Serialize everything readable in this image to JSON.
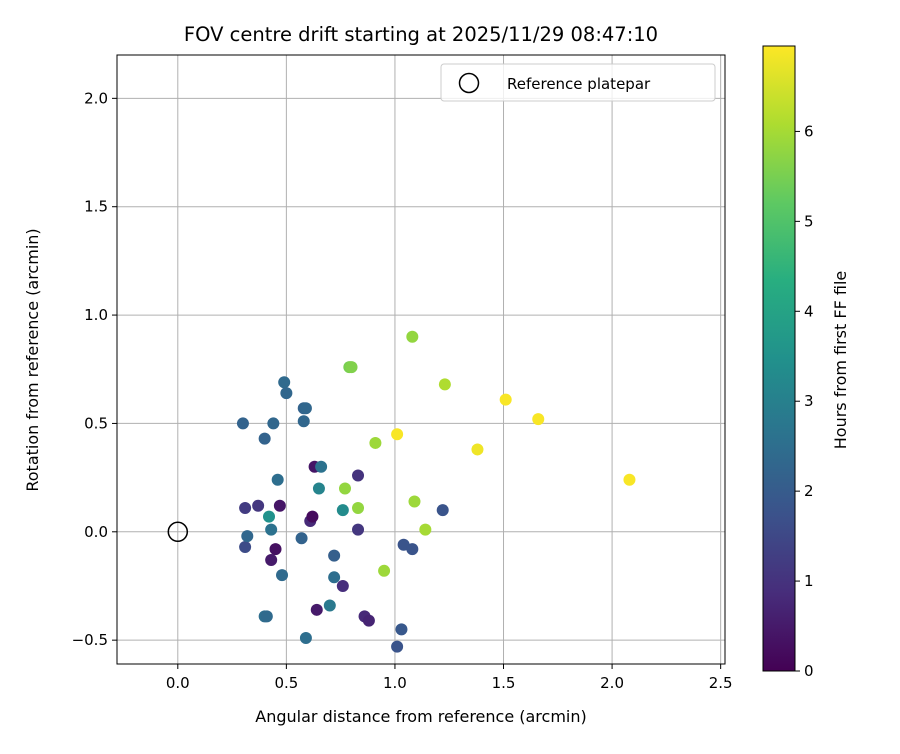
{
  "chart_data": {
    "type": "scatter",
    "title": "FOV centre drift starting at 2025/11/29 08:47:10",
    "xlabel": "Angular distance from reference (arcmin)",
    "ylabel": "Rotation from reference (arcmin)",
    "xlim": [
      -0.28,
      2.52
    ],
    "ylim": [
      -0.61,
      2.2
    ],
    "xticks": [
      0.0,
      0.5,
      1.0,
      1.5,
      2.0,
      2.5
    ],
    "xtick_labels": [
      "0.0",
      "0.5",
      "1.0",
      "1.5",
      "2.0",
      "2.5"
    ],
    "yticks": [
      -0.5,
      0.0,
      0.5,
      1.0,
      1.5,
      2.0
    ],
    "ytick_labels": [
      "−0.5",
      "0.0",
      "0.5",
      "1.0",
      "1.5",
      "2.0"
    ],
    "grid": true,
    "legend": {
      "position": "top-right",
      "entries": [
        "Reference platepar"
      ]
    },
    "reference_point": {
      "x": 0.0,
      "y": 0.0,
      "label": "Reference platepar"
    },
    "colorbar": {
      "label": "Hours from first FF file",
      "min": 0,
      "max": 6.95,
      "ticks": [
        0,
        1,
        2,
        3,
        4,
        5,
        6
      ],
      "tick_labels": [
        "0",
        "1",
        "2",
        "3",
        "4",
        "5",
        "6"
      ],
      "colormap": "viridis"
    },
    "points": [
      {
        "x": 0.3,
        "y": 0.5,
        "c": 2.2
      },
      {
        "x": 0.31,
        "y": 0.11,
        "c": 1.2
      },
      {
        "x": 0.31,
        "y": -0.07,
        "c": 1.6
      },
      {
        "x": 0.32,
        "y": -0.02,
        "c": 2.3
      },
      {
        "x": 0.37,
        "y": 0.12,
        "c": 1.1
      },
      {
        "x": 0.4,
        "y": 0.43,
        "c": 2.2
      },
      {
        "x": 0.4,
        "y": -0.39,
        "c": 2.5
      },
      {
        "x": 0.41,
        "y": -0.39,
        "c": 2.4
      },
      {
        "x": 0.42,
        "y": 0.07,
        "c": 3.5
      },
      {
        "x": 0.43,
        "y": 0.01,
        "c": 2.6
      },
      {
        "x": 0.43,
        "y": -0.13,
        "c": 0.5
      },
      {
        "x": 0.44,
        "y": 0.5,
        "c": 2.3
      },
      {
        "x": 0.45,
        "y": -0.08,
        "c": 0.3
      },
      {
        "x": 0.46,
        "y": 0.24,
        "c": 2.5
      },
      {
        "x": 0.47,
        "y": 0.12,
        "c": 0.4
      },
      {
        "x": 0.48,
        "y": -0.2,
        "c": 2.4
      },
      {
        "x": 0.49,
        "y": 0.69,
        "c": 2.4
      },
      {
        "x": 0.5,
        "y": 0.64,
        "c": 2.3
      },
      {
        "x": 0.57,
        "y": -0.03,
        "c": 2.2
      },
      {
        "x": 0.58,
        "y": 0.57,
        "c": 2.2
      },
      {
        "x": 0.59,
        "y": 0.57,
        "c": 2.3
      },
      {
        "x": 0.58,
        "y": 0.51,
        "c": 2.3
      },
      {
        "x": 0.59,
        "y": -0.49,
        "c": 2.5
      },
      {
        "x": 0.61,
        "y": 0.05,
        "c": 0.8
      },
      {
        "x": 0.62,
        "y": 0.07,
        "c": 0.2
      },
      {
        "x": 0.63,
        "y": 0.3,
        "c": 0.4
      },
      {
        "x": 0.64,
        "y": -0.36,
        "c": 0.5
      },
      {
        "x": 0.65,
        "y": 0.2,
        "c": 3.1
      },
      {
        "x": 0.66,
        "y": 0.3,
        "c": 2.6
      },
      {
        "x": 0.7,
        "y": -0.34,
        "c": 2.8
      },
      {
        "x": 0.72,
        "y": -0.11,
        "c": 2.1
      },
      {
        "x": 0.72,
        "y": -0.21,
        "c": 2.5
      },
      {
        "x": 0.76,
        "y": -0.25,
        "c": 0.9
      },
      {
        "x": 0.76,
        "y": 0.1,
        "c": 3.3
      },
      {
        "x": 0.77,
        "y": 0.2,
        "c": 5.8
      },
      {
        "x": 0.79,
        "y": 0.76,
        "c": 5.5
      },
      {
        "x": 0.8,
        "y": 0.76,
        "c": 5.6
      },
      {
        "x": 0.83,
        "y": 0.26,
        "c": 1.0
      },
      {
        "x": 0.83,
        "y": 0.01,
        "c": 1.1
      },
      {
        "x": 0.83,
        "y": 0.11,
        "c": 5.8
      },
      {
        "x": 0.86,
        "y": -0.39,
        "c": 0.8
      },
      {
        "x": 0.88,
        "y": -0.41,
        "c": 0.7
      },
      {
        "x": 0.91,
        "y": 0.41,
        "c": 5.9
      },
      {
        "x": 0.95,
        "y": -0.18,
        "c": 5.9
      },
      {
        "x": 1.01,
        "y": 0.45,
        "c": 6.9
      },
      {
        "x": 1.01,
        "y": -0.53,
        "c": 1.8
      },
      {
        "x": 1.03,
        "y": -0.45,
        "c": 1.9
      },
      {
        "x": 1.04,
        "y": -0.06,
        "c": 1.8
      },
      {
        "x": 1.08,
        "y": -0.08,
        "c": 1.8
      },
      {
        "x": 1.08,
        "y": 0.9,
        "c": 5.8
      },
      {
        "x": 1.09,
        "y": 0.14,
        "c": 5.9
      },
      {
        "x": 1.14,
        "y": 0.01,
        "c": 6.0
      },
      {
        "x": 1.22,
        "y": 0.1,
        "c": 1.8
      },
      {
        "x": 1.23,
        "y": 0.68,
        "c": 6.1
      },
      {
        "x": 1.38,
        "y": 0.38,
        "c": 6.8
      },
      {
        "x": 1.51,
        "y": 0.61,
        "c": 6.9
      },
      {
        "x": 1.66,
        "y": 0.52,
        "c": 6.9
      },
      {
        "x": 2.08,
        "y": 0.24,
        "c": 6.9
      }
    ]
  }
}
